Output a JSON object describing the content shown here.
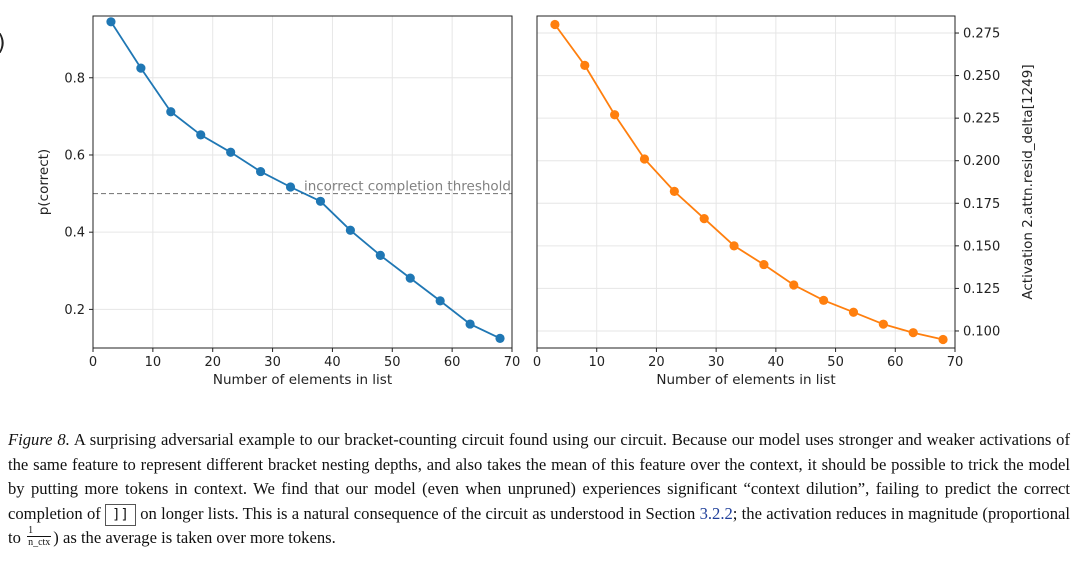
{
  "chart_data": [
    {
      "type": "line",
      "title": "",
      "xlabel": "Number of elements in list",
      "ylabel": "p(correct)",
      "xlim": [
        0,
        70
      ],
      "ylim": [
        0.1,
        0.96
      ],
      "xticks": [
        0,
        10,
        20,
        30,
        40,
        50,
        60,
        70
      ],
      "yticks": [
        0.2,
        0.4,
        0.6,
        0.8
      ],
      "color": "#1f77b4",
      "grid": true,
      "series": [
        {
          "name": "p(correct)",
          "x": [
            3,
            8,
            13,
            18,
            23,
            28,
            33,
            38,
            43,
            48,
            53,
            58,
            63,
            68
          ],
          "y": [
            0.945,
            0.825,
            0.712,
            0.652,
            0.607,
            0.557,
            0.517,
            0.48,
            0.405,
            0.34,
            0.281,
            0.222,
            0.162,
            0.125
          ]
        }
      ],
      "threshold": {
        "value": 0.5,
        "label": "incorrect completion threshold",
        "color": "#808080"
      }
    },
    {
      "type": "line",
      "title": "",
      "xlabel": "Number of elements in list",
      "ylabel": "Activation 2.attn.resid_delta[1249]",
      "ylabel_side": "right",
      "xlim": [
        0,
        70
      ],
      "ylim": [
        0.09,
        0.285
      ],
      "xticks": [
        0,
        10,
        20,
        30,
        40,
        50,
        60,
        70
      ],
      "yticks": [
        0.1,
        0.125,
        0.15,
        0.175,
        0.2,
        0.225,
        0.25,
        0.275
      ],
      "ytick_labels": [
        "0.100",
        "0.125",
        "0.150",
        "0.175",
        "0.200",
        "0.225",
        "0.250",
        "0.275"
      ],
      "color": "#ff7f0e",
      "grid": true,
      "series": [
        {
          "name": "activation",
          "x": [
            3,
            8,
            13,
            18,
            23,
            28,
            33,
            38,
            43,
            48,
            53,
            58,
            63,
            68
          ],
          "y": [
            0.28,
            0.256,
            0.227,
            0.201,
            0.182,
            0.166,
            0.15,
            0.139,
            0.127,
            0.118,
            0.111,
            0.104,
            0.099,
            0.095
          ]
        }
      ]
    }
  ],
  "caption": {
    "label": "Figure 8.",
    "text_1": "A surprising adversarial example to our bracket-counting circuit found using our circuit. Because our model uses stronger and weaker activations of the same feature to represent different bracket nesting depths, and also takes the mean of this feature over the context, it should be possible to trick the model by putting more tokens in context. We find that our model (even when unpruned) experiences significant “context dilution”, failing to predict the correct completion of",
    "code": "]]",
    "text_2": "on longer lists. This is a natural consequence of the circuit as understood in Section",
    "section_ref": "3.2.2",
    "text_3": "; the activation reduces in magnitude (proportional to",
    "frac_num": "1",
    "frac_den": "n_ctx",
    "text_4": ") as the average is taken over more tokens."
  },
  "edge_glyph": ")"
}
